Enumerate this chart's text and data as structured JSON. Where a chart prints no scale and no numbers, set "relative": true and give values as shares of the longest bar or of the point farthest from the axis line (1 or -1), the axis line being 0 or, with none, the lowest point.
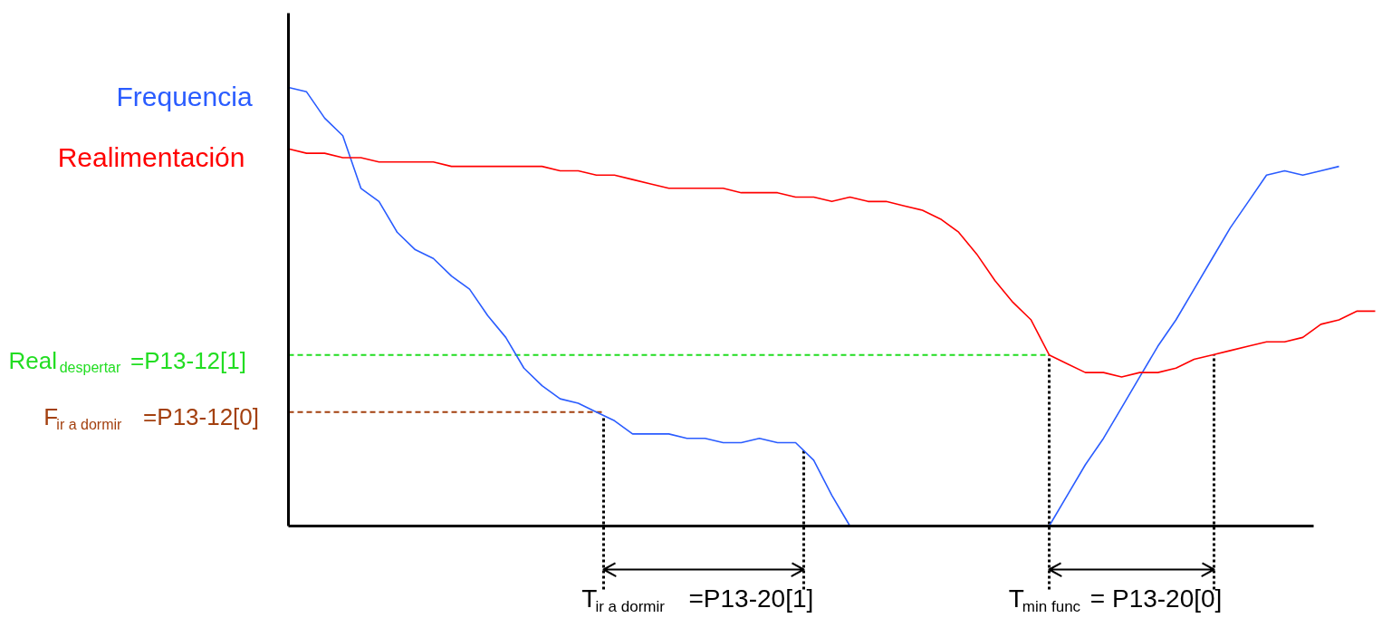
{
  "chart_data": {
    "type": "line",
    "relative": true,
    "categories": [
      null,
      null,
      null,
      null,
      null,
      null,
      null,
      null,
      null,
      null,
      null,
      null,
      null,
      null,
      null,
      null,
      null,
      null,
      null,
      null,
      null,
      null,
      null,
      null,
      null,
      null,
      null,
      null,
      null,
      null,
      null,
      null,
      null,
      null,
      null,
      null,
      null,
      null,
      null,
      null,
      null,
      null,
      null,
      null,
      null,
      null,
      null,
      null,
      null,
      null,
      null,
      null,
      null,
      null,
      null,
      null,
      null,
      null,
      null,
      null,
      null
    ],
    "series": [
      {
        "name": "Frequencia",
        "color": "#2a5cff",
        "values": [
          1.0,
          0.99,
          0.93,
          0.89,
          0.77,
          0.74,
          0.67,
          0.63,
          0.61,
          0.57,
          0.54,
          0.48,
          0.43,
          0.36,
          0.32,
          0.29,
          0.28,
          0.26,
          0.24,
          0.21,
          0.21,
          0.21,
          0.2,
          0.2,
          0.19,
          0.19,
          0.2,
          0.19,
          0.19,
          0.15,
          0.07,
          0,
          0,
          0,
          0,
          0,
          0,
          0,
          0,
          0,
          0,
          0,
          0,
          0.07,
          0.14,
          0.2,
          0.27,
          0.34,
          0.41,
          0.47,
          0.54,
          0.61,
          0.68,
          0.74,
          0.8,
          0.81,
          0.8,
          0.81,
          0.82,
          null,
          null
        ]
      },
      {
        "name": "Realimentación",
        "color": "#ff0000",
        "values": [
          0.86,
          0.85,
          0.85,
          0.84,
          0.84,
          0.83,
          0.83,
          0.83,
          0.83,
          0.82,
          0.82,
          0.82,
          0.82,
          0.82,
          0.82,
          0.81,
          0.81,
          0.8,
          0.8,
          0.79,
          0.78,
          0.77,
          0.77,
          0.77,
          0.77,
          0.76,
          0.76,
          0.76,
          0.75,
          0.75,
          0.74,
          0.75,
          0.74,
          0.74,
          0.73,
          0.72,
          0.7,
          0.67,
          0.62,
          0.56,
          0.51,
          0.47,
          0.39,
          0.37,
          0.35,
          0.35,
          0.34,
          0.35,
          0.35,
          0.36,
          0.38,
          0.39,
          0.4,
          0.41,
          0.42,
          0.42,
          0.43,
          0.46,
          0.47,
          0.49,
          0.49
        ]
      }
    ],
    "ref_lines": [
      {
        "axis": "y",
        "value": 0.39,
        "label": "Real$_{despertar}$ =P13-12[1]",
        "color": "#22dd22",
        "line_style": "dashed"
      },
      {
        "axis": "y",
        "value": 0.26,
        "label": "F$_{ir a dormir}$=P13-12[0]",
        "color": "#a3400f",
        "line_style": "dashed"
      }
    ],
    "annotations": [
      "T$_{ir a dormir}$=P13-20[1]",
      "T$_{min func}$ = P13-20[0]"
    ]
  }
}
